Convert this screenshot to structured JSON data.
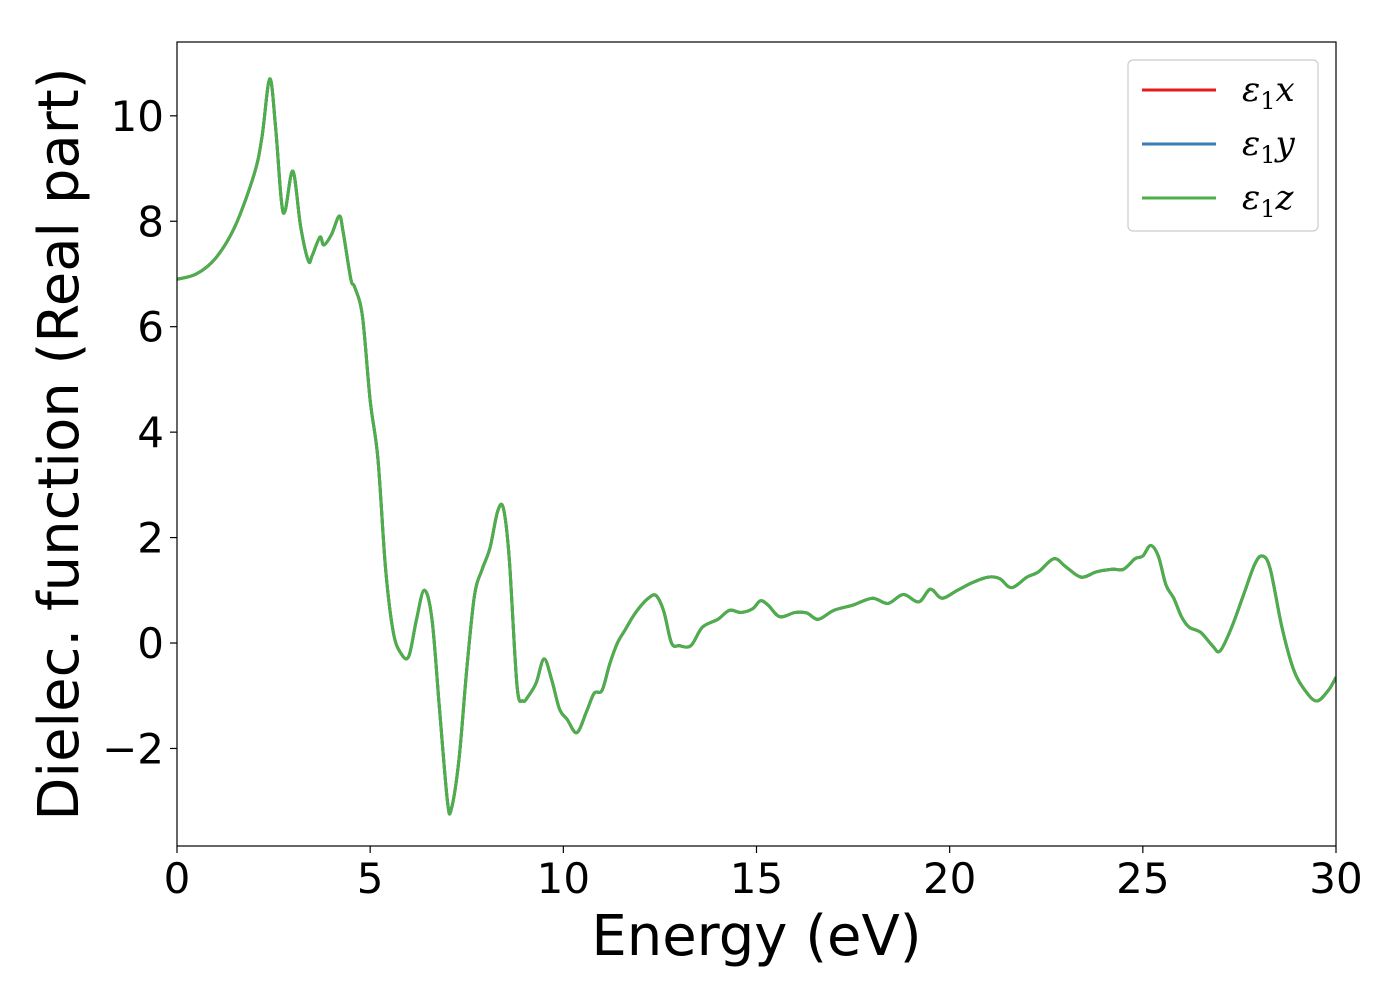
{
  "chart_data": {
    "type": "line",
    "xlabel": "Energy (eV)",
    "ylabel": "Dielec. function (Real part)",
    "xlim": [
      0,
      30
    ],
    "ylim": [
      -3.85,
      11.4
    ],
    "xticks": [
      0,
      5,
      10,
      15,
      20,
      25,
      30
    ],
    "yticks": [
      -2,
      0,
      2,
      4,
      6,
      8,
      10
    ],
    "xtick_labels": [
      "0",
      "5",
      "10",
      "15",
      "20",
      "25",
      "30"
    ],
    "ytick_labels": [
      "−2",
      "0",
      "2",
      "4",
      "6",
      "8",
      "10"
    ],
    "grid": false,
    "legend_position": "top-right",
    "x": [
      0,
      0.5,
      1.0,
      1.5,
      2.0,
      2.2,
      2.4,
      2.55,
      2.7,
      2.8,
      3.0,
      3.2,
      3.4,
      3.5,
      3.7,
      3.8,
      4.0,
      4.2,
      4.3,
      4.5,
      4.6,
      4.8,
      5.0,
      5.2,
      5.4,
      5.6,
      5.8,
      6.0,
      6.2,
      6.4,
      6.6,
      6.8,
      7.0,
      7.1,
      7.3,
      7.5,
      7.7,
      7.9,
      8.1,
      8.3,
      8.45,
      8.6,
      8.8,
      8.95,
      9.1,
      9.3,
      9.5,
      9.7,
      9.9,
      10.1,
      10.35,
      10.6,
      10.8,
      11.0,
      11.2,
      11.4,
      11.6,
      11.8,
      12.0,
      12.2,
      12.4,
      12.6,
      12.8,
      13.0,
      13.3,
      13.6,
      14.0,
      14.3,
      14.6,
      14.9,
      15.1,
      15.3,
      15.6,
      16.0,
      16.3,
      16.6,
      17.0,
      17.5,
      18.0,
      18.4,
      18.8,
      19.2,
      19.5,
      19.8,
      20.2,
      20.6,
      21.0,
      21.3,
      21.6,
      22.0,
      22.3,
      22.7,
      23.0,
      23.4,
      23.8,
      24.2,
      24.5,
      24.8,
      25.0,
      25.2,
      25.4,
      25.6,
      25.8,
      26.0,
      26.2,
      26.5,
      26.8,
      27.0,
      27.3,
      27.6,
      27.9,
      28.1,
      28.3,
      28.6,
      28.9,
      29.2,
      29.5,
      29.8,
      30.0
    ],
    "series": [
      {
        "name": "ε₁x",
        "label_main": "ε",
        "label_sub": "1",
        "label_suffix": "x",
        "color": "#e41a1c",
        "y": [
          6.9,
          7.0,
          7.3,
          7.9,
          8.9,
          9.6,
          10.7,
          9.8,
          8.4,
          8.2,
          8.95,
          7.9,
          7.25,
          7.35,
          7.7,
          7.55,
          7.75,
          8.1,
          7.8,
          6.9,
          6.75,
          6.2,
          4.6,
          3.5,
          1.4,
          0.2,
          -0.2,
          -0.25,
          0.45,
          1.0,
          0.45,
          -1.3,
          -3.0,
          -3.15,
          -2.2,
          -0.5,
          0.9,
          1.4,
          1.8,
          2.5,
          2.55,
          1.6,
          -0.8,
          -1.1,
          -1.0,
          -0.75,
          -0.3,
          -0.7,
          -1.25,
          -1.45,
          -1.7,
          -1.3,
          -0.95,
          -0.9,
          -0.4,
          0.0,
          0.25,
          0.5,
          0.7,
          0.85,
          0.9,
          0.6,
          0.0,
          -0.05,
          -0.05,
          0.3,
          0.45,
          0.62,
          0.58,
          0.65,
          0.8,
          0.72,
          0.5,
          0.58,
          0.57,
          0.45,
          0.62,
          0.72,
          0.85,
          0.75,
          0.92,
          0.78,
          1.02,
          0.85,
          1.0,
          1.15,
          1.25,
          1.22,
          1.05,
          1.25,
          1.35,
          1.6,
          1.45,
          1.25,
          1.35,
          1.4,
          1.4,
          1.6,
          1.65,
          1.85,
          1.65,
          1.1,
          0.85,
          0.5,
          0.3,
          0.2,
          -0.05,
          -0.15,
          0.3,
          0.9,
          1.5,
          1.65,
          1.4,
          0.3,
          -0.5,
          -0.9,
          -1.1,
          -0.9,
          -0.65
        ]
      },
      {
        "name": "ε₁y",
        "label_main": "ε",
        "label_sub": "1",
        "label_suffix": "y",
        "color": "#377eb8",
        "y": [
          6.9,
          7.0,
          7.3,
          7.9,
          8.9,
          9.6,
          10.7,
          9.8,
          8.4,
          8.2,
          8.95,
          7.9,
          7.25,
          7.35,
          7.7,
          7.55,
          7.75,
          8.1,
          7.8,
          6.9,
          6.75,
          6.2,
          4.6,
          3.5,
          1.4,
          0.2,
          -0.2,
          -0.25,
          0.45,
          1.0,
          0.45,
          -1.3,
          -3.0,
          -3.15,
          -2.2,
          -0.5,
          0.9,
          1.4,
          1.8,
          2.5,
          2.55,
          1.6,
          -0.8,
          -1.1,
          -1.0,
          -0.75,
          -0.3,
          -0.7,
          -1.25,
          -1.45,
          -1.7,
          -1.3,
          -0.95,
          -0.9,
          -0.4,
          0.0,
          0.25,
          0.5,
          0.7,
          0.85,
          0.9,
          0.6,
          0.0,
          -0.05,
          -0.05,
          0.3,
          0.45,
          0.62,
          0.58,
          0.65,
          0.8,
          0.72,
          0.5,
          0.58,
          0.57,
          0.45,
          0.62,
          0.72,
          0.85,
          0.75,
          0.92,
          0.78,
          1.02,
          0.85,
          1.0,
          1.15,
          1.25,
          1.22,
          1.05,
          1.25,
          1.35,
          1.6,
          1.45,
          1.25,
          1.35,
          1.4,
          1.4,
          1.6,
          1.65,
          1.85,
          1.65,
          1.1,
          0.85,
          0.5,
          0.3,
          0.2,
          -0.05,
          -0.15,
          0.3,
          0.9,
          1.5,
          1.65,
          1.4,
          0.3,
          -0.5,
          -0.9,
          -1.1,
          -0.9,
          -0.65
        ]
      },
      {
        "name": "ε₁z",
        "label_main": "ε",
        "label_sub": "1",
        "label_suffix": "z",
        "color": "#4daf4a",
        "y": [
          6.9,
          7.0,
          7.3,
          7.9,
          8.9,
          9.6,
          10.7,
          9.8,
          8.4,
          8.2,
          8.95,
          7.9,
          7.25,
          7.35,
          7.7,
          7.55,
          7.75,
          8.1,
          7.8,
          6.9,
          6.75,
          6.2,
          4.6,
          3.5,
          1.4,
          0.2,
          -0.2,
          -0.25,
          0.45,
          1.0,
          0.45,
          -1.3,
          -3.0,
          -3.15,
          -2.2,
          -0.5,
          0.9,
          1.4,
          1.8,
          2.5,
          2.55,
          1.6,
          -0.8,
          -1.1,
          -1.0,
          -0.75,
          -0.3,
          -0.7,
          -1.25,
          -1.45,
          -1.7,
          -1.3,
          -0.95,
          -0.9,
          -0.4,
          0.0,
          0.25,
          0.5,
          0.7,
          0.85,
          0.9,
          0.6,
          0.0,
          -0.05,
          -0.05,
          0.3,
          0.45,
          0.62,
          0.58,
          0.65,
          0.8,
          0.72,
          0.5,
          0.58,
          0.57,
          0.45,
          0.62,
          0.72,
          0.85,
          0.75,
          0.92,
          0.78,
          1.02,
          0.85,
          1.0,
          1.15,
          1.25,
          1.22,
          1.05,
          1.25,
          1.35,
          1.6,
          1.45,
          1.25,
          1.35,
          1.4,
          1.4,
          1.6,
          1.65,
          1.85,
          1.65,
          1.1,
          0.85,
          0.5,
          0.3,
          0.2,
          -0.05,
          -0.15,
          0.3,
          0.9,
          1.5,
          1.65,
          1.4,
          0.3,
          -0.5,
          -0.9,
          -1.1,
          -0.9,
          -0.65
        ]
      }
    ]
  }
}
